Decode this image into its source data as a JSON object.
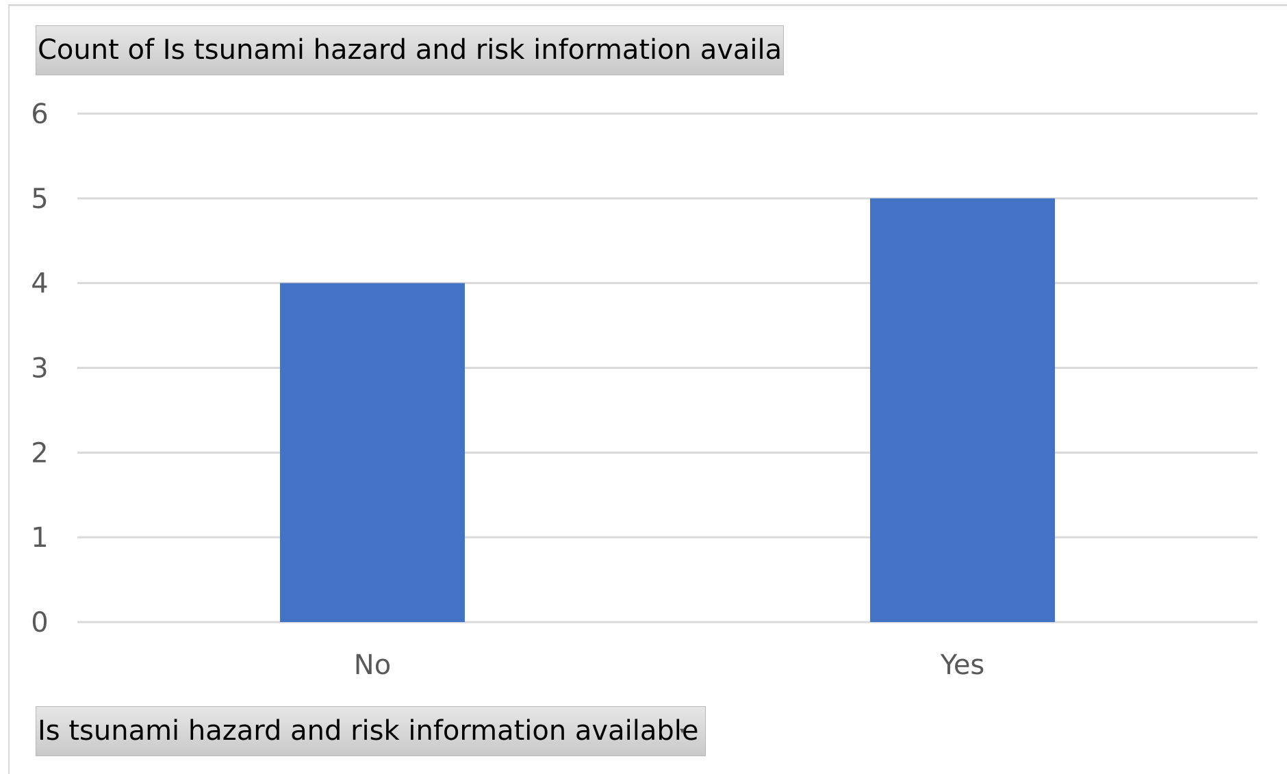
{
  "chart_data": {
    "type": "bar",
    "title": "",
    "categories": [
      "No",
      "Yes"
    ],
    "values": [
      4,
      5
    ],
    "xlabel": "",
    "ylabel": "",
    "ylim": [
      0,
      6
    ],
    "yticks": [
      "0",
      "1",
      "2",
      "3",
      "4",
      "5",
      "6"
    ],
    "grid": true,
    "legend": "none"
  },
  "pivot": {
    "value_field": "Count of Is tsunami hazard and risk information available",
    "axis_field": "Is tsunami hazard and risk information available",
    "axis_dropdown_icon": "dropdown-arrow-icon"
  },
  "colors": {
    "bar": "#4472c4",
    "grid": "#d9d9d9",
    "tick_text": "#595959"
  }
}
